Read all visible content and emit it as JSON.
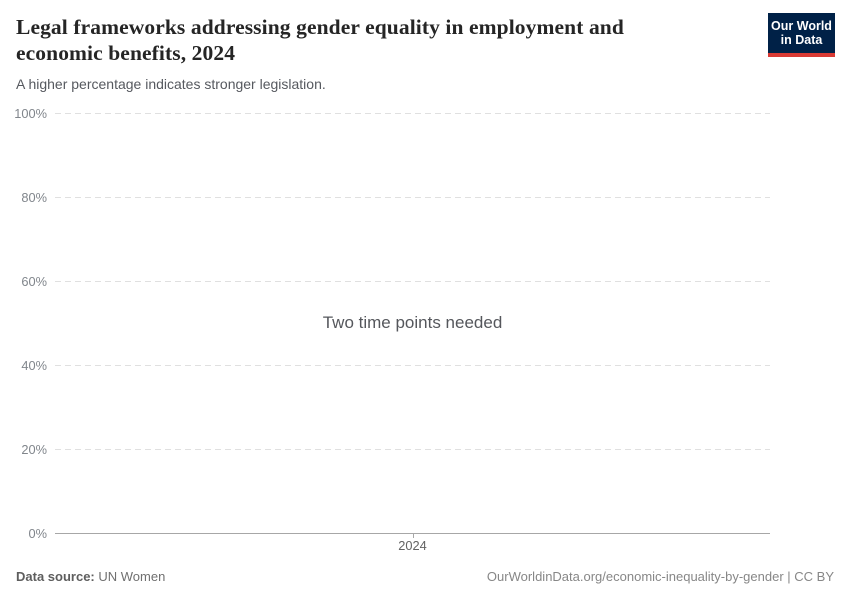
{
  "header": {
    "title": "Legal frameworks addressing gender equality in employment and economic benefits, 2024",
    "subtitle": "A higher percentage indicates stronger legislation.",
    "logo": {
      "line1": "Our World",
      "line2": "in Data",
      "bg_color": "#002147",
      "accent_color": "#d93a34"
    }
  },
  "chart_data": {
    "type": "line",
    "title": "Legal frameworks addressing gender equality in employment and economic benefits, 2024",
    "subtitle": "A higher percentage indicates stronger legislation.",
    "message": "Two time points needed",
    "series": [],
    "x": [
      2024
    ],
    "xlabel": "",
    "ylabel": "",
    "ylim": [
      0,
      100
    ],
    "grid": true,
    "yticks": [
      {
        "value": 0,
        "label": "0%"
      },
      {
        "value": 20,
        "label": "20%"
      },
      {
        "value": 40,
        "label": "40%"
      },
      {
        "value": 60,
        "label": "60%"
      },
      {
        "value": 80,
        "label": "80%"
      },
      {
        "value": 100,
        "label": "100%"
      }
    ],
    "xticks": [
      {
        "value": 2024,
        "label": "2024"
      }
    ]
  },
  "footer": {
    "datasource_label": "Data source:",
    "datasource_value": " UN Women",
    "attribution": "OurWorldinData.org/economic-inequality-by-gender | CC BY"
  }
}
